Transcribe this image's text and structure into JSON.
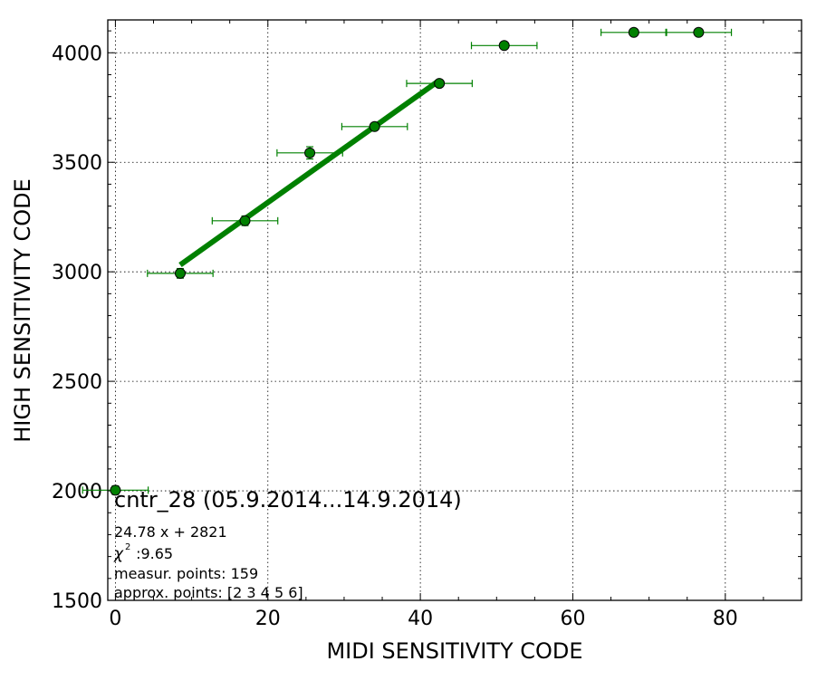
{
  "chart_data": {
    "type": "scatter",
    "title": "",
    "xlabel": "MIDI SENSITIVITY CODE",
    "ylabel": "HIGH SENSITIVITY CODE",
    "xlim": [
      -1,
      90
    ],
    "ylim": [
      1500,
      4150
    ],
    "xticks": [
      0,
      20,
      40,
      60,
      80
    ],
    "yticks": [
      1500,
      2000,
      2500,
      3000,
      3500,
      4000
    ],
    "xtick_labels": [
      "0",
      "20",
      "40",
      "60",
      "80"
    ],
    "ytick_labels": [
      "1500",
      "2000",
      "2500",
      "3000",
      "3500",
      "4000"
    ],
    "x_minor_step": 5,
    "y_minor_step": 100,
    "grid": true,
    "colors": {
      "points": "#008000",
      "fit": "#008000",
      "edge": "#000000"
    },
    "points": [
      {
        "x": 0,
        "y": 2003,
        "xerr": 4.3,
        "yerr": 20
      },
      {
        "x": 8.5,
        "y": 2993,
        "xerr": 4.3,
        "yerr": 22
      },
      {
        "x": 17,
        "y": 3233,
        "xerr": 4.3,
        "yerr": 22
      },
      {
        "x": 25.5,
        "y": 3543,
        "xerr": 4.3,
        "yerr": 28
      },
      {
        "x": 34,
        "y": 3663,
        "xerr": 4.3,
        "yerr": 15
      },
      {
        "x": 42.5,
        "y": 3860,
        "xerr": 4.3,
        "yerr": 14
      },
      {
        "x": 51,
        "y": 4033,
        "xerr": 4.3,
        "yerr": 10
      },
      {
        "x": 68,
        "y": 4093,
        "xerr": 4.3,
        "yerr": 8
      },
      {
        "x": 76.5,
        "y": 4093,
        "xerr": 4.3,
        "yerr": 8
      }
    ],
    "fit": {
      "slope": 24.78,
      "intercept": 2821,
      "x_range": [
        8.5,
        42.5
      ]
    },
    "annotations": {
      "heading": "cntr_28 (05.9.2014...14.9.2014)",
      "equation": "24.78 x + 2821",
      "chi2_value": " :9.65",
      "measur_points": "measur. points: 159",
      "approx_points": "approx. points: [2 3 4 5 6]"
    }
  }
}
